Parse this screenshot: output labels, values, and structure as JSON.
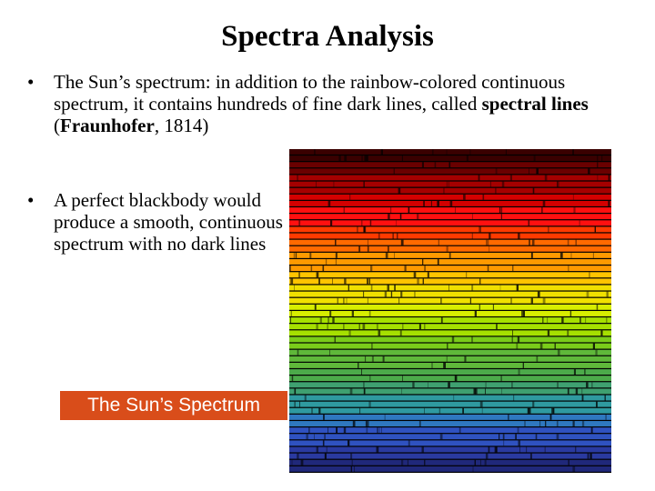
{
  "slide": {
    "title": "Spectra Analysis"
  },
  "bullets": [
    {
      "marker": "•",
      "text_1": "The Sun’s spectrum: in addition to the rainbow-colored continuous spectrum, it contains hundreds of fine dark lines, called ",
      "bold_1": "spectral lines",
      "text_2": " (",
      "bold_2": "Fraunhofer",
      "text_3": ", 1814)"
    },
    {
      "marker": "•",
      "text_1": "A perfect blackbody would produce a smooth, continuous spectrum with no dark lines"
    }
  ],
  "image": {
    "caption": "The Sun’s Spectrum",
    "caption_color": "#d94d1a",
    "band_colors": [
      "#3a0000",
      "#6a0000",
      "#a50000",
      "#d40000",
      "#ff1010",
      "#ff3a00",
      "#ff6a00",
      "#ff9a00",
      "#ffc400",
      "#f0e000",
      "#d7ee00",
      "#a6e000",
      "#7acc1a",
      "#5fb83a",
      "#4caa4a",
      "#3fa070",
      "#2f9aa0",
      "#2f78c0",
      "#2f52c0",
      "#2a3aa0",
      "#20287a"
    ]
  }
}
